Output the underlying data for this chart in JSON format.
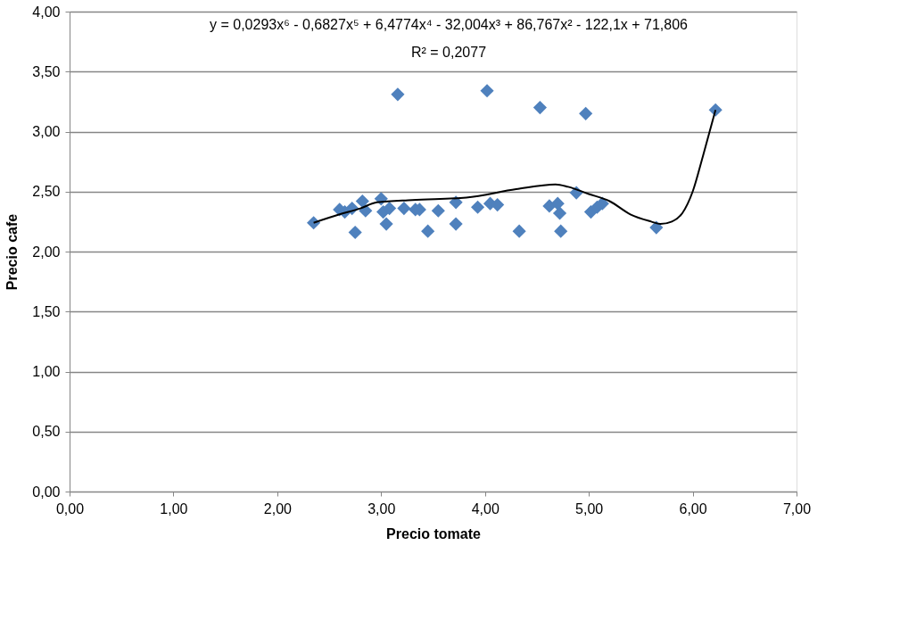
{
  "chart_data": {
    "type": "scatter",
    "xlabel": "Precio tomate",
    "ylabel": "Precio cafe",
    "annotations": [
      "y = 0,0293x⁶ - 0,6827x⁵ + 6,4774x⁴ - 32,004x³ + 86,767x² - 122,1x + 71,806",
      "R² = 0,2077"
    ],
    "xlim": [
      0,
      7
    ],
    "ylim": [
      0,
      4
    ],
    "xticks": [
      {
        "value": 0,
        "label": "0,00"
      },
      {
        "value": 1,
        "label": "1,00"
      },
      {
        "value": 2,
        "label": "2,00"
      },
      {
        "value": 3,
        "label": "3,00"
      },
      {
        "value": 4,
        "label": "4,00"
      },
      {
        "value": 5,
        "label": "5,00"
      },
      {
        "value": 6,
        "label": "6,00"
      },
      {
        "value": 7,
        "label": "7,00"
      }
    ],
    "yticks": [
      {
        "value": 0,
        "label": "0,00"
      },
      {
        "value": 0.5,
        "label": "0,50"
      },
      {
        "value": 1,
        "label": "1,00"
      },
      {
        "value": 1.5,
        "label": "1,50"
      },
      {
        "value": 2,
        "label": "2,00"
      },
      {
        "value": 2.5,
        "label": "2,50"
      },
      {
        "value": 3,
        "label": "3,00"
      },
      {
        "value": 3.5,
        "label": "3,50"
      },
      {
        "value": 4,
        "label": "4,00"
      }
    ],
    "grid": "y",
    "marker": "diamond",
    "legend": false,
    "series": [
      {
        "color": "#4f81bd",
        "x": [
          2.35,
          2.6,
          2.65,
          2.72,
          2.75,
          2.82,
          2.85,
          3.0,
          3.02,
          3.05,
          3.08,
          3.16,
          3.22,
          3.33,
          3.37,
          3.45,
          3.55,
          3.72,
          3.72,
          3.93,
          4.02,
          4.05,
          4.12,
          4.33,
          4.53,
          4.62,
          4.7,
          4.72,
          4.73,
          4.88,
          4.97,
          5.02,
          5.08,
          5.13,
          5.65,
          6.22
        ],
        "values": [
          2.24,
          2.35,
          2.33,
          2.36,
          2.16,
          2.42,
          2.34,
          2.44,
          2.33,
          2.23,
          2.36,
          3.31,
          2.36,
          2.35,
          2.35,
          2.17,
          2.34,
          2.41,
          2.23,
          2.37,
          3.34,
          2.4,
          2.39,
          2.17,
          3.2,
          2.38,
          2.4,
          2.32,
          2.17,
          2.49,
          3.15,
          2.33,
          2.37,
          2.4,
          2.2,
          3.18
        ]
      },
      {
        "type": "line",
        "color": "#000000",
        "line_style": "solid",
        "marker": "none",
        "x": [
          2.35,
          2.6,
          2.8,
          2.96,
          3.3,
          3.82,
          4.3,
          4.68,
          4.8,
          5.0,
          5.2,
          5.4,
          5.6,
          5.69,
          5.8,
          5.9,
          6.0,
          6.1,
          6.22
        ],
        "values": [
          2.24,
          2.31,
          2.36,
          2.41,
          2.43,
          2.45,
          2.52,
          2.56,
          2.54,
          2.48,
          2.42,
          2.31,
          2.25,
          2.23,
          2.25,
          2.32,
          2.5,
          2.8,
          3.18
        ]
      }
    ]
  }
}
